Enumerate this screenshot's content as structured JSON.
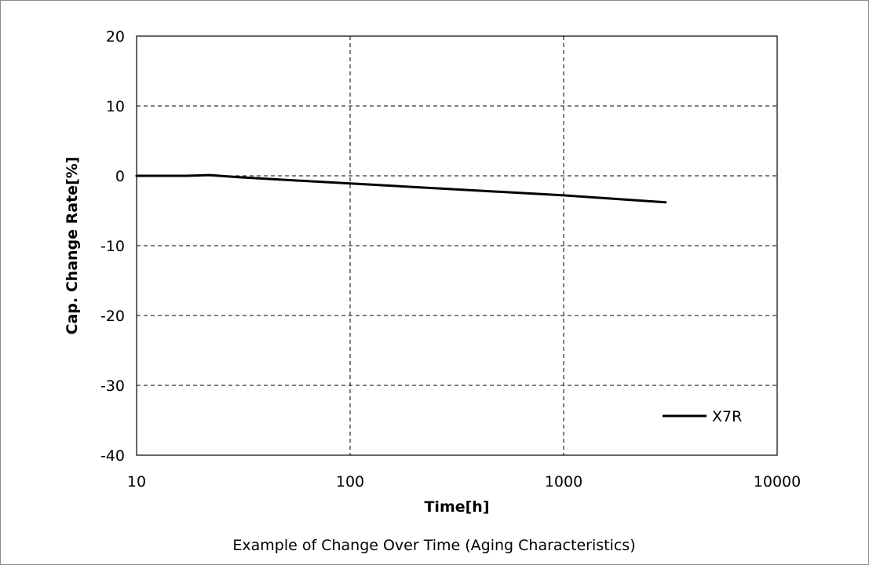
{
  "chart_data": {
    "type": "line",
    "title": "",
    "caption": "Example of Change Over Time (Aging Characteristics)",
    "xlabel": "Time[h]",
    "ylabel": "Cap. Change Rate[%]",
    "x_scale": "log",
    "xlim": [
      10,
      10000
    ],
    "ylim": [
      -40,
      20
    ],
    "x_ticks": [
      10,
      100,
      1000,
      10000
    ],
    "x_tick_labels": [
      "10",
      "100",
      "1000",
      "10000"
    ],
    "y_ticks": [
      20,
      10,
      0,
      -10,
      -20,
      -30,
      -40
    ],
    "y_tick_labels": [
      "20",
      "10",
      "0",
      "-10",
      "-20",
      "-30",
      "-40"
    ],
    "grid": "dashed, both axes",
    "legend_position": "bottom-right",
    "series": [
      {
        "name": "X7R",
        "color": "#000000",
        "x": [
          10,
          17,
          22,
          30,
          100,
          1000,
          3000
        ],
        "y": [
          0,
          0,
          0.1,
          -0.2,
          -1.1,
          -2.8,
          -3.8
        ]
      }
    ]
  }
}
